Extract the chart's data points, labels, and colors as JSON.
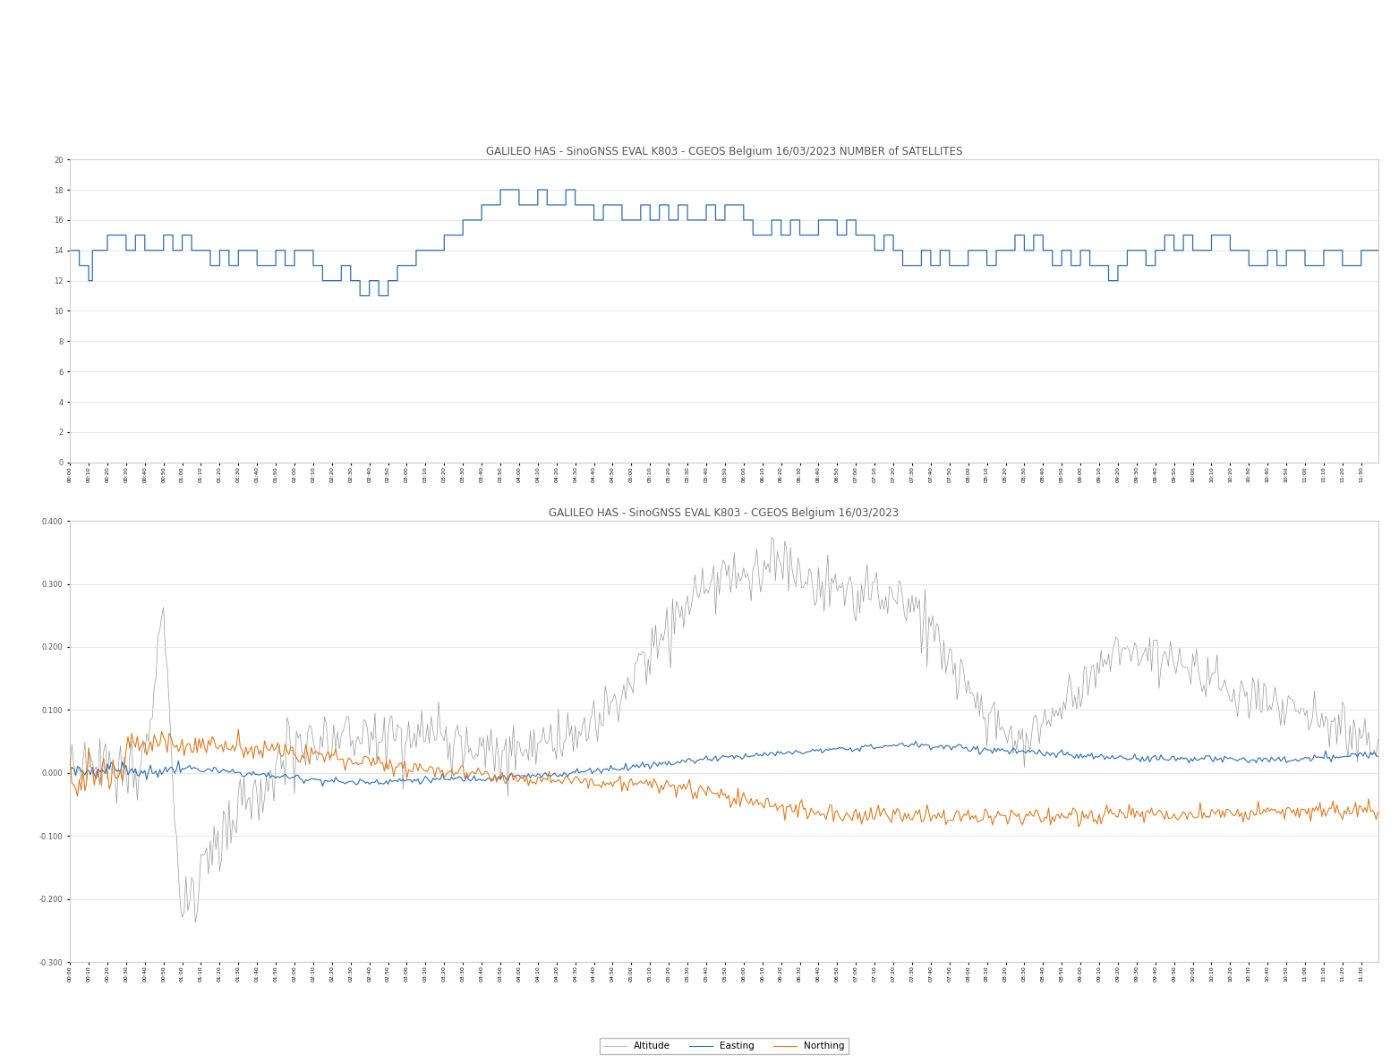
{
  "title1": "GALILEO HAS - SinoGNSS EVAL K803 - CGEOS Belgium 16/03/2023 NUMBER of SATELLITES",
  "title2": "GALILEO HAS - SinoGNSS EVAL K803 - CGEOS Belgium 16/03/2023",
  "plot1_ylim": [
    0,
    20
  ],
  "plot1_yticks": [
    0,
    2,
    4,
    6,
    8,
    10,
    12,
    14,
    16,
    18,
    20
  ],
  "plot2_ylim": [
    -0.3,
    0.4
  ],
  "plot2_yticks": [
    -0.3,
    -0.2,
    -0.1,
    0.0,
    0.1,
    0.2,
    0.3,
    0.4
  ],
  "line_color_blue": "#2e6db4",
  "line_color_orange": "#e07b20",
  "line_color_gray": "#999999",
  "background_color": "#ffffff",
  "plot_bg_color": "#ffffff",
  "title_fontsize": 8.5,
  "tick_fontsize": 6,
  "legend_labels": [
    "Easting",
    "Northing",
    "Altitude"
  ],
  "n_points": 700
}
